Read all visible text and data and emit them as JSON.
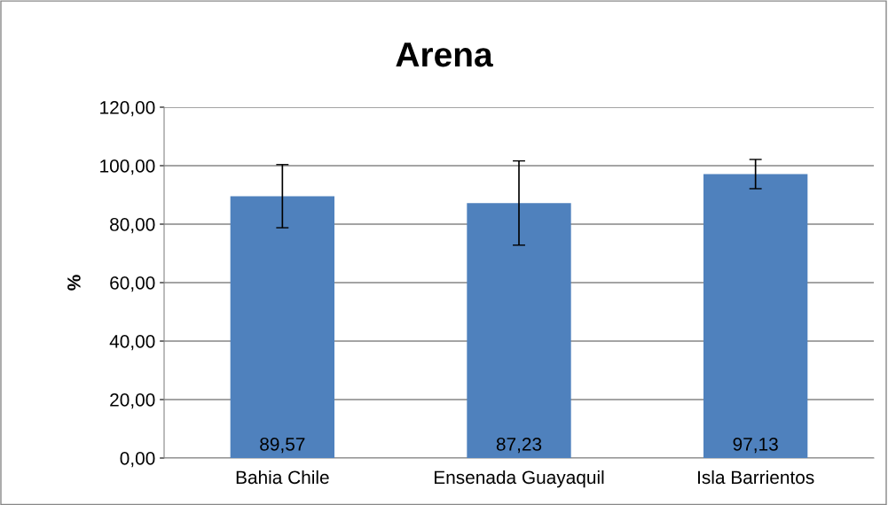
{
  "chart_data": {
    "type": "bar",
    "title": "Arena",
    "ylabel": "%",
    "categories": [
      "Bahia Chile",
      "Ensenada Guayaquil",
      "Isla Barrientos"
    ],
    "values": [
      89.57,
      87.23,
      97.13
    ],
    "color": "#4f81bd",
    "errors": [
      10.8,
      14.4,
      5.0
    ],
    "value_labels": [
      "89,57",
      "87,23",
      "97,13"
    ],
    "ylim": [
      0,
      120
    ],
    "yticks": [
      {
        "value": 0,
        "label": "0,00"
      },
      {
        "value": 20,
        "label": "20,00"
      },
      {
        "value": 40,
        "label": "40,00"
      },
      {
        "value": 60,
        "label": "60,00"
      },
      {
        "value": 80,
        "label": "80,00"
      },
      {
        "value": 100,
        "label": "100,00"
      },
      {
        "value": 120,
        "label": "120,00"
      }
    ],
    "grid": "y",
    "legend": false
  }
}
